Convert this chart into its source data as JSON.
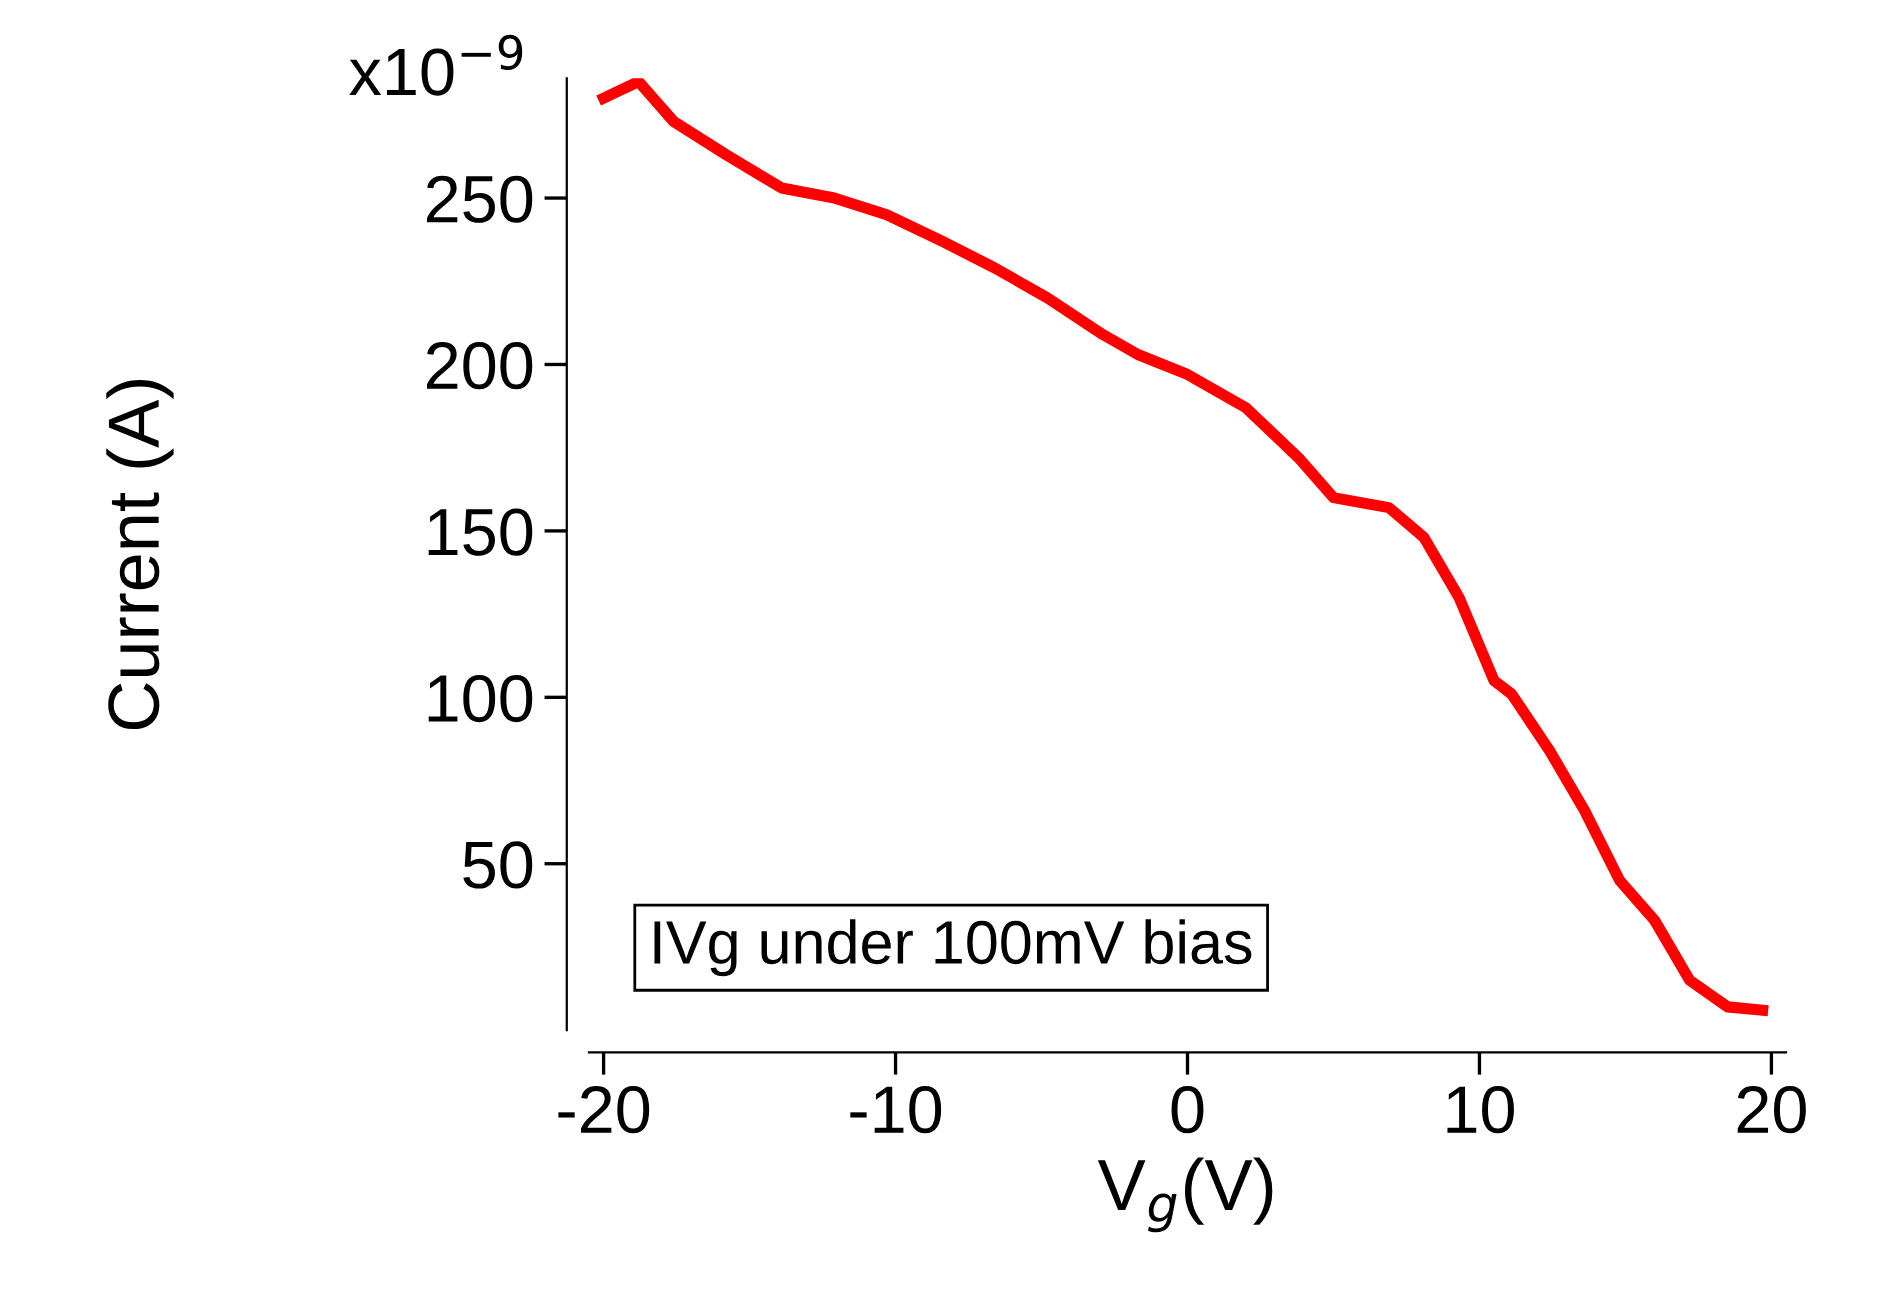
{
  "chart_data": {
    "type": "line",
    "xlabel": "V$_{g}$(V)",
    "ylabel": "Current (A)",
    "annotations": [
      "IVg under 100mV bias",
      "x10$^{−9}$"
    ],
    "x": [
      -20,
      -18.8,
      -17.6,
      -15.8,
      -13.9,
      -12.1,
      -10.3,
      -8.4,
      -6.6,
      -4.8,
      -2.9,
      -1.7,
      0,
      2,
      3.8,
      5,
      6.9,
      8.1,
      9.3,
      10.5,
      11.1,
      12.4,
      13.6,
      14.8,
      16,
      17.2,
      18.5,
      19.7
    ],
    "series": [
      {
        "color": "#ff0000",
        "values": [
          280,
          285,
          273,
          263,
          253,
          250,
          245,
          237,
          229,
          220,
          209,
          203,
          197,
          187,
          172,
          160,
          157,
          148,
          130,
          105,
          101,
          84,
          66,
          45,
          33,
          15,
          7,
          6
        ]
      }
    ],
    "xlim": [
      -20.5,
      20.5
    ],
    "xticks": [
      -20,
      -10,
      0,
      10,
      20
    ],
    "ylim": [
      0,
      286
    ],
    "yticks": [
      50,
      100,
      150,
      200,
      250
    ],
    "grid": false,
    "legend": false,
    "marker": "none",
    "line_style": "solid"
  }
}
